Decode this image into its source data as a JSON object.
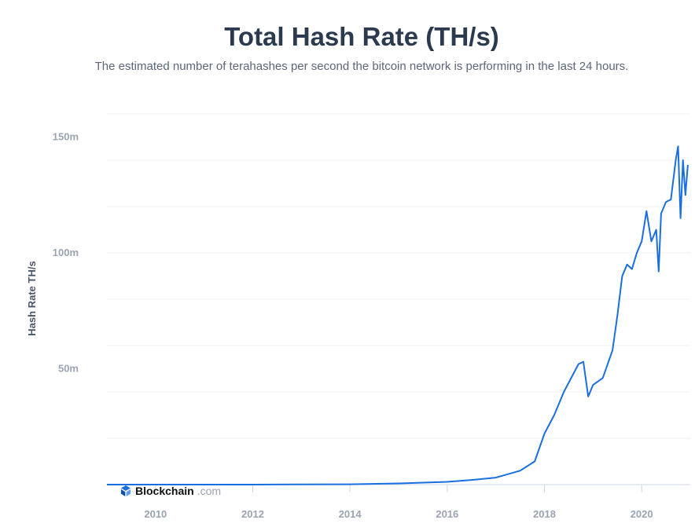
{
  "chart_data": {
    "type": "line",
    "title": "Total Hash Rate (TH/s)",
    "subtitle": "The estimated number of terahashes per second the bitcoin network is performing in the last 24 hours.",
    "ylabel": "Hash Rate TH/s",
    "xlabel": "",
    "x_ticks": [
      "2010",
      "2012",
      "2014",
      "2016",
      "2018",
      "2020"
    ],
    "y_ticks": [
      {
        "value": 50000000,
        "label": "50m"
      },
      {
        "value": 100000000,
        "label": "100m"
      },
      {
        "value": 150000000,
        "label": "150m"
      }
    ],
    "xlim": [
      2009.0,
      2021.0
    ],
    "ylim": [
      0,
      160000000
    ],
    "grid": true,
    "series": [
      {
        "color": "#1a6fe0",
        "x": [
          2009.0,
          2012.0,
          2014.0,
          2015.0,
          2016.0,
          2016.5,
          2017.0,
          2017.5,
          2017.8,
          2018.0,
          2018.2,
          2018.4,
          2018.6,
          2018.7,
          2018.8,
          2018.9,
          2019.0,
          2019.2,
          2019.4,
          2019.5,
          2019.6,
          2019.7,
          2019.8,
          2019.9,
          2020.0,
          2020.1,
          2020.2,
          2020.3,
          2020.35,
          2020.4,
          2020.5,
          2020.6,
          2020.7,
          2020.75,
          2020.8,
          2020.85,
          2020.9,
          2020.95
        ],
        "y": [
          0,
          10000,
          150000,
          500000,
          1200000,
          2000000,
          3000000,
          6000000,
          10000000,
          22000000,
          30000000,
          40000000,
          48000000,
          52000000,
          53000000,
          38000000,
          43000000,
          46000000,
          58000000,
          73000000,
          90000000,
          95000000,
          93000000,
          100000000,
          105000000,
          118000000,
          105000000,
          110000000,
          92000000,
          117000000,
          122000000,
          123000000,
          140000000,
          146000000,
          115000000,
          140000000,
          125000000,
          138000000
        ]
      }
    ]
  },
  "brand": {
    "name": "Blockchain",
    "domain": ".com",
    "icon": "blockchain-logo-icon"
  }
}
